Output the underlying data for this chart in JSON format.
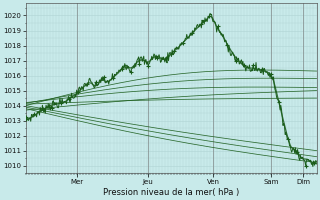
{
  "xlabel": "Pression niveau de la mer( hPa )",
  "ylim": [
    1009.5,
    1020.8
  ],
  "yticks": [
    1010,
    1011,
    1012,
    1013,
    1014,
    1015,
    1016,
    1017,
    1018,
    1019,
    1020
  ],
  "background_color": "#c8eaea",
  "grid_color": "#b0d4d4",
  "line_color_dark": "#1a5c1a",
  "days": [
    "Mer",
    "Jeu",
    "Ven",
    "Sam",
    "Dim"
  ],
  "day_positions": [
    0.175,
    0.42,
    0.645,
    0.845,
    0.955
  ],
  "xlim": [
    0,
    1.0
  ],
  "ensemble_lines": [
    [
      1013.8,
      1010.2,
      -0.3
    ],
    [
      1013.9,
      1010.6,
      -0.2
    ],
    [
      1014.0,
      1011.0,
      -0.15
    ],
    [
      1014.1,
      1014.5,
      0.1
    ],
    [
      1014.2,
      1015.2,
      0.4
    ],
    [
      1014.15,
      1015.8,
      0.6
    ],
    [
      1014.0,
      1016.3,
      0.9
    ],
    [
      1013.7,
      1015.0,
      0.2
    ]
  ],
  "main_segments": [
    [
      0.0,
      1013.0
    ],
    [
      0.04,
      1013.5
    ],
    [
      0.08,
      1014.0
    ],
    [
      0.13,
      1014.2
    ],
    [
      0.175,
      1014.8
    ],
    [
      0.2,
      1015.3
    ],
    [
      0.22,
      1015.6
    ],
    [
      0.24,
      1015.2
    ],
    [
      0.26,
      1015.8
    ],
    [
      0.28,
      1015.5
    ],
    [
      0.3,
      1015.9
    ],
    [
      0.32,
      1016.2
    ],
    [
      0.34,
      1016.8
    ],
    [
      0.36,
      1016.4
    ],
    [
      0.38,
      1016.9
    ],
    [
      0.4,
      1017.1
    ],
    [
      0.42,
      1016.8
    ],
    [
      0.44,
      1017.3
    ],
    [
      0.46,
      1017.2
    ],
    [
      0.48,
      1017.0
    ],
    [
      0.5,
      1017.5
    ],
    [
      0.52,
      1017.8
    ],
    [
      0.54,
      1018.2
    ],
    [
      0.56,
      1018.6
    ],
    [
      0.58,
      1019.0
    ],
    [
      0.6,
      1019.4
    ],
    [
      0.62,
      1019.7
    ],
    [
      0.635,
      1020.1
    ],
    [
      0.645,
      1019.7
    ],
    [
      0.655,
      1019.2
    ],
    [
      0.665,
      1019.0
    ],
    [
      0.68,
      1018.5
    ],
    [
      0.7,
      1017.8
    ],
    [
      0.72,
      1017.2
    ],
    [
      0.74,
      1016.8
    ],
    [
      0.76,
      1016.5
    ],
    [
      0.78,
      1016.5
    ],
    [
      0.8,
      1016.4
    ],
    [
      0.82,
      1016.3
    ],
    [
      0.835,
      1016.2
    ],
    [
      0.845,
      1016.0
    ],
    [
      0.855,
      1015.5
    ],
    [
      0.865,
      1014.5
    ],
    [
      0.875,
      1013.8
    ],
    [
      0.885,
      1013.0
    ],
    [
      0.895,
      1012.2
    ],
    [
      0.905,
      1011.5
    ],
    [
      0.915,
      1011.0
    ],
    [
      0.925,
      1011.2
    ],
    [
      0.935,
      1010.8
    ],
    [
      0.945,
      1010.5
    ],
    [
      0.955,
      1010.4
    ],
    [
      0.965,
      1010.5
    ],
    [
      0.975,
      1010.3
    ],
    [
      0.985,
      1010.2
    ],
    [
      1.0,
      1010.1
    ]
  ]
}
